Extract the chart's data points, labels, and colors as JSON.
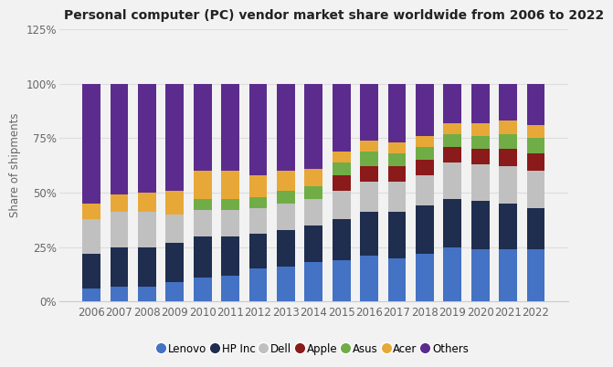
{
  "title": "Personal computer (PC) vendor market share worldwide from 2006 to 2022",
  "ylabel": "Share of shipments",
  "years": [
    2006,
    2007,
    2008,
    2009,
    2010,
    2011,
    2012,
    2013,
    2014,
    2015,
    2016,
    2017,
    2018,
    2019,
    2020,
    2021,
    2022
  ],
  "vendors": [
    "Lenovo",
    "HP Inc",
    "Dell",
    "Apple",
    "Asus",
    "Acer",
    "Others"
  ],
  "colors": [
    "#4472C4",
    "#1F2D4E",
    "#C0C0C0",
    "#8B1A1A",
    "#70AD47",
    "#E8A838",
    "#5B2C8D"
  ],
  "data": {
    "Lenovo": [
      6,
      7,
      7,
      9,
      11,
      12,
      15,
      16,
      18,
      19,
      21,
      20,
      22,
      25,
      24,
      24,
      24
    ],
    "HP Inc": [
      16,
      18,
      18,
      18,
      19,
      18,
      16,
      17,
      17,
      19,
      20,
      21,
      22,
      22,
      22,
      21,
      19
    ],
    "Dell": [
      16,
      16,
      16,
      13,
      12,
      12,
      12,
      12,
      12,
      13,
      14,
      14,
      14,
      17,
      17,
      17,
      17
    ],
    "Apple": [
      0,
      0,
      0,
      0,
      0,
      0,
      0,
      0,
      0,
      7,
      7,
      7,
      7,
      7,
      7,
      8,
      8
    ],
    "Asus": [
      0,
      0,
      0,
      0,
      5,
      5,
      5,
      6,
      6,
      6,
      7,
      6,
      6,
      6,
      6,
      7,
      7
    ],
    "Acer": [
      7,
      8,
      9,
      11,
      13,
      13,
      10,
      9,
      8,
      5,
      5,
      5,
      5,
      5,
      6,
      6,
      6
    ],
    "Others": [
      55,
      51,
      50,
      49,
      40,
      40,
      42,
      40,
      39,
      31,
      26,
      27,
      24,
      18,
      18,
      17,
      19
    ]
  },
  "ylim": [
    0,
    125
  ],
  "yticks": [
    0,
    25,
    50,
    75,
    100,
    125
  ],
  "ytick_labels": [
    "0%",
    "25%",
    "50%",
    "75%",
    "100%",
    "125%"
  ],
  "background_color": "#F2F2F2",
  "plot_bg_color": "#FFFFFF",
  "bar_width": 0.65,
  "title_fontsize": 10,
  "legend_fontsize": 8.5,
  "axis_fontsize": 8.5,
  "tick_color": "#666666"
}
